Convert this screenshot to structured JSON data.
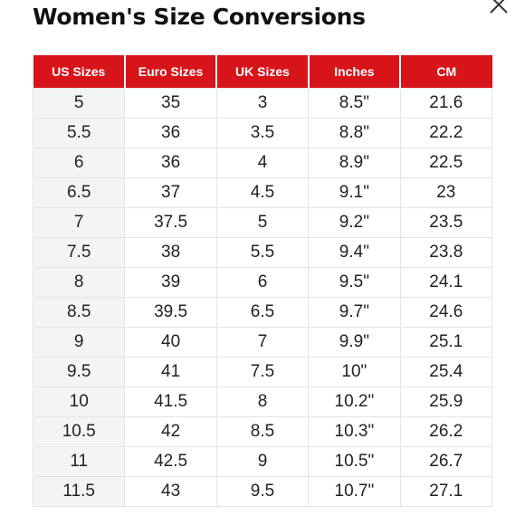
{
  "title": "Women's Size Conversions",
  "accent_color": "#d7141a",
  "close_icon": "close-icon",
  "table": {
    "headers": [
      "US Sizes",
      "Euro Sizes",
      "UK Sizes",
      "Inches",
      "CM"
    ],
    "rows": [
      [
        "5",
        "35",
        "3",
        "8.5\"",
        "21.6"
      ],
      [
        "5.5",
        "36",
        "3.5",
        "8.8\"",
        "22.2"
      ],
      [
        "6",
        "36",
        "4",
        "8.9\"",
        "22.5"
      ],
      [
        "6.5",
        "37",
        "4.5",
        "9.1\"",
        "23"
      ],
      [
        "7",
        "37.5",
        "5",
        "9.2\"",
        "23.5"
      ],
      [
        "7.5",
        "38",
        "5.5",
        "9.4\"",
        "23.8"
      ],
      [
        "8",
        "39",
        "6",
        "9.5\"",
        "24.1"
      ],
      [
        "8.5",
        "39.5",
        "6.5",
        "9.7\"",
        "24.6"
      ],
      [
        "9",
        "40",
        "7",
        "9.9\"",
        "25.1"
      ],
      [
        "9.5",
        "41",
        "7.5",
        "10\"",
        "25.4"
      ],
      [
        "10",
        "41.5",
        "8",
        "10.2\"",
        "25.9"
      ],
      [
        "10.5",
        "42",
        "8.5",
        "10.3\"",
        "26.2"
      ],
      [
        "11",
        "42.5",
        "9",
        "10.5\"",
        "26.7"
      ],
      [
        "11.5",
        "43",
        "9.5",
        "10.7\"",
        "27.1"
      ]
    ]
  }
}
